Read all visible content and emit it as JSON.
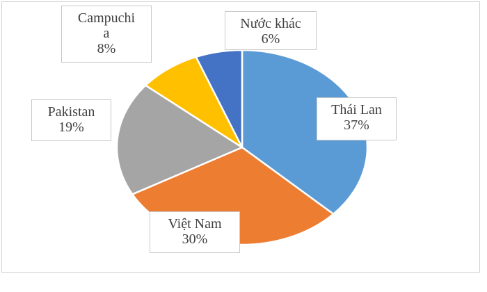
{
  "chart_data": {
    "type": "pie",
    "categories": [
      "Thái Lan",
      "Việt Nam",
      "Pakistan",
      "Campuchia",
      "Nước khác"
    ],
    "values": [
      37,
      30,
      19,
      8,
      6
    ],
    "value_labels": [
      "37%",
      "30%",
      "19%",
      "8%",
      "6%"
    ],
    "colors": [
      "#5b9bd5",
      "#ed7d31",
      "#a5a5a5",
      "#ffc000",
      "#4472c4"
    ]
  }
}
